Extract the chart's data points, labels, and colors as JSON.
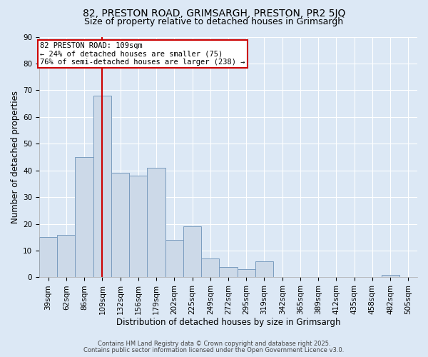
{
  "title": "82, PRESTON ROAD, GRIMSARGH, PRESTON, PR2 5JQ",
  "subtitle": "Size of property relative to detached houses in Grimsargh",
  "xlabel": "Distribution of detached houses by size in Grimsargh",
  "ylabel": "Number of detached properties",
  "bar_labels": [
    "39sqm",
    "62sqm",
    "86sqm",
    "109sqm",
    "132sqm",
    "156sqm",
    "179sqm",
    "202sqm",
    "225sqm",
    "249sqm",
    "272sqm",
    "295sqm",
    "319sqm",
    "342sqm",
    "365sqm",
    "389sqm",
    "412sqm",
    "435sqm",
    "458sqm",
    "482sqm",
    "505sqm"
  ],
  "bar_values": [
    15,
    16,
    45,
    68,
    39,
    38,
    41,
    14,
    19,
    7,
    4,
    3,
    6,
    0,
    0,
    0,
    0,
    0,
    0,
    1,
    0
  ],
  "bar_color": "#ccd9e8",
  "bar_edge_color": "#7a9cbf",
  "ylim": [
    0,
    90
  ],
  "yticks": [
    0,
    10,
    20,
    30,
    40,
    50,
    60,
    70,
    80,
    90
  ],
  "vline_index": 3,
  "vline_color": "#cc0000",
  "annotation_text": "82 PRESTON ROAD: 109sqm\n← 24% of detached houses are smaller (75)\n76% of semi-detached houses are larger (238) →",
  "annotation_box_color": "white",
  "annotation_box_edge_color": "#cc0000",
  "footer1": "Contains HM Land Registry data © Crown copyright and database right 2025.",
  "footer2": "Contains public sector information licensed under the Open Government Licence v3.0.",
  "bg_color": "#dce8f5",
  "plot_bg_color": "#dce8f5",
  "grid_color": "white",
  "title_fontsize": 10,
  "subtitle_fontsize": 9,
  "axis_label_fontsize": 8.5,
  "tick_fontsize": 7.5,
  "annotation_fontsize": 7.5,
  "footer_fontsize": 6.0
}
